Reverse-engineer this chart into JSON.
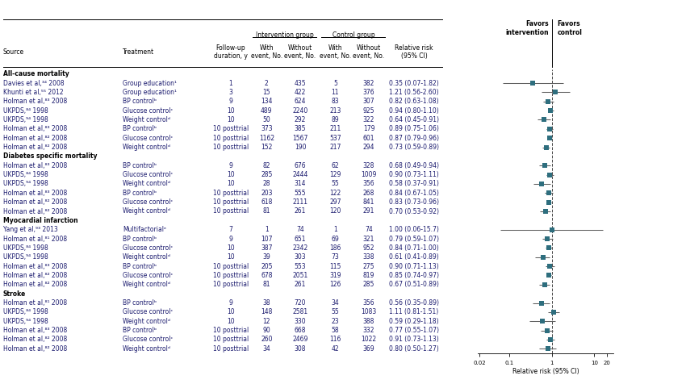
{
  "sections": [
    {
      "label": "All-cause mortality",
      "rows": [
        {
          "source": "Davies et al,³⁴ 2008",
          "treatment": "Group education¹",
          "followup": "1",
          "int_with": "2",
          "int_without": "435",
          "ctrl_with": "5",
          "ctrl_without": "382",
          "rr": 0.35,
          "ci_lo": 0.07,
          "ci_hi": 1.82,
          "rr_text": "0.35 (0.07-1.82)"
        },
        {
          "source": "Khunti et al,⁵⁵ 2012",
          "treatment": "Group education¹",
          "followup": "3",
          "int_with": "15",
          "int_without": "422",
          "ctrl_with": "11",
          "ctrl_without": "376",
          "rr": 1.21,
          "ci_lo": 0.56,
          "ci_hi": 2.6,
          "rr_text": "1.21 (0.56-2.60)"
        },
        {
          "source": "Holman et al,⁸³ 2008",
          "treatment": "BP controlᵇ",
          "followup": "9",
          "int_with": "134",
          "int_without": "624",
          "ctrl_with": "83",
          "ctrl_without": "307",
          "rr": 0.82,
          "ci_lo": 0.63,
          "ci_hi": 1.08,
          "rr_text": "0.82 (0.63-1.08)"
        },
        {
          "source": "UKPDS,⁸⁴ 1998",
          "treatment": "Glucose controlᶜ",
          "followup": "10",
          "int_with": "489",
          "int_without": "2240",
          "ctrl_with": "213",
          "ctrl_without": "925",
          "rr": 0.94,
          "ci_lo": 0.8,
          "ci_hi": 1.1,
          "rr_text": "0.94 (0.80-1.10)"
        },
        {
          "source": "UKPDS,⁹⁴ 1998",
          "treatment": "Weight controlᵈ",
          "followup": "10",
          "int_with": "50",
          "int_without": "292",
          "ctrl_with": "89",
          "ctrl_without": "322",
          "rr": 0.64,
          "ci_lo": 0.45,
          "ci_hi": 0.91,
          "rr_text": "0.64 (0.45-0.91)"
        },
        {
          "source": "Holman et al,⁸³ 2008",
          "treatment": "BP controlᵇ",
          "followup": "10 posttrial",
          "int_with": "373",
          "int_without": "385",
          "ctrl_with": "211",
          "ctrl_without": "179",
          "rr": 0.89,
          "ci_lo": 0.75,
          "ci_hi": 1.06,
          "rr_text": "0.89 (0.75-1.06)"
        },
        {
          "source": "Holman et al,⁸² 2008",
          "treatment": "Glucose controlᶜ",
          "followup": "10 posttrial",
          "int_with": "1162",
          "int_without": "1567",
          "ctrl_with": "537",
          "ctrl_without": "601",
          "rr": 0.87,
          "ci_lo": 0.79,
          "ci_hi": 0.96,
          "rr_text": "0.87 (0.79-0.96)"
        },
        {
          "source": "Holman et al,⁸² 2008",
          "treatment": "Weight controlᵈ",
          "followup": "10 posttrial",
          "int_with": "152",
          "int_without": "190",
          "ctrl_with": "217",
          "ctrl_without": "294",
          "rr": 0.73,
          "ci_lo": 0.59,
          "ci_hi": 0.89,
          "rr_text": "0.73 (0.59-0.89)"
        }
      ]
    },
    {
      "label": "Diabetes specific mortality",
      "rows": [
        {
          "source": "Holman et al,⁸³ 2008",
          "treatment": "BP controlᵇ",
          "followup": "9",
          "int_with": "82",
          "int_without": "676",
          "ctrl_with": "62",
          "ctrl_without": "328",
          "rr": 0.68,
          "ci_lo": 0.49,
          "ci_hi": 0.94,
          "rr_text": "0.68 (0.49-0.94)"
        },
        {
          "source": "UKPDS,⁸⁴ 1998",
          "treatment": "Glucose controlᶜ",
          "followup": "10",
          "int_with": "285",
          "int_without": "2444",
          "ctrl_with": "129",
          "ctrl_without": "1009",
          "rr": 0.9,
          "ci_lo": 0.73,
          "ci_hi": 1.11,
          "rr_text": "0.90 (0.73-1.11)"
        },
        {
          "source": "UKPDS,⁹⁴ 1998",
          "treatment": "Weight controlᵈ",
          "followup": "10",
          "int_with": "28",
          "int_without": "314",
          "ctrl_with": "55",
          "ctrl_without": "356",
          "rr": 0.58,
          "ci_lo": 0.37,
          "ci_hi": 0.91,
          "rr_text": "0.58 (0.37-0.91)"
        },
        {
          "source": "Holman et al,⁸³ 2008",
          "treatment": "BP controlᵇ",
          "followup": "10 posttrial",
          "int_with": "203",
          "int_without": "555",
          "ctrl_with": "122",
          "ctrl_without": "268",
          "rr": 0.84,
          "ci_lo": 0.67,
          "ci_hi": 1.05,
          "rr_text": "0.84 (0.67-1.05)"
        },
        {
          "source": "Holman et al,⁸² 2008",
          "treatment": "Glucose controlᶜ",
          "followup": "10 posttrial",
          "int_with": "618",
          "int_without": "2111",
          "ctrl_with": "297",
          "ctrl_without": "841",
          "rr": 0.83,
          "ci_lo": 0.73,
          "ci_hi": 0.96,
          "rr_text": "0.83 (0.73-0.96)"
        },
        {
          "source": "Holman et al,⁸² 2008",
          "treatment": "Weight controlᵈ",
          "followup": "10 posttrial",
          "int_with": "81",
          "int_without": "261",
          "ctrl_with": "120",
          "ctrl_without": "291",
          "rr": 0.7,
          "ci_lo": 0.53,
          "ci_hi": 0.92,
          "rr_text": "0.70 (0.53-0.92)"
        }
      ]
    },
    {
      "label": "Myocardial infarction",
      "rows": [
        {
          "source": "Yang et al,⁹³ 2013",
          "treatment": "Multifactorialᵉ",
          "followup": "7",
          "int_with": "1",
          "int_without": "74",
          "ctrl_with": "1",
          "ctrl_without": "74",
          "rr": 1.0,
          "ci_lo": 0.06,
          "ci_hi": 15.7,
          "rr_text": "1.00 (0.06-15.7)"
        },
        {
          "source": "Holman et al,⁸¹ 2008",
          "treatment": "BP controlᵇ",
          "followup": "9",
          "int_with": "107",
          "int_without": "651",
          "ctrl_with": "69",
          "ctrl_without": "321",
          "rr": 0.79,
          "ci_lo": 0.59,
          "ci_hi": 1.07,
          "rr_text": "0.79 (0.59-1.07)"
        },
        {
          "source": "UKPDS,⁸⁴ 1998",
          "treatment": "Glucose controlᶜ",
          "followup": "10",
          "int_with": "387",
          "int_without": "2342",
          "ctrl_with": "186",
          "ctrl_without": "952",
          "rr": 0.84,
          "ci_lo": 0.71,
          "ci_hi": 1.0,
          "rr_text": "0.84 (0.71-1.00)"
        },
        {
          "source": "UKPDS,⁹⁴ 1998",
          "treatment": "Weight controlᵈ",
          "followup": "10",
          "int_with": "39",
          "int_without": "303",
          "ctrl_with": "73",
          "ctrl_without": "338",
          "rr": 0.61,
          "ci_lo": 0.41,
          "ci_hi": 0.89,
          "rr_text": "0.61 (0.41-0.89)"
        },
        {
          "source": "Holman et al,⁸³ 2008",
          "treatment": "BP controlᵇ",
          "followup": "10 posttrial",
          "int_with": "205",
          "int_without": "553",
          "ctrl_with": "115",
          "ctrl_without": "275",
          "rr": 0.9,
          "ci_lo": 0.71,
          "ci_hi": 1.13,
          "rr_text": "0.90 (0.71-1.13)"
        },
        {
          "source": "Holman et al,⁸² 2008",
          "treatment": "Glucose controlᶜ",
          "followup": "10 posttrial",
          "int_with": "678",
          "int_without": "2051",
          "ctrl_with": "319",
          "ctrl_without": "819",
          "rr": 0.85,
          "ci_lo": 0.74,
          "ci_hi": 0.97,
          "rr_text": "0.85 (0.74-0.97)"
        },
        {
          "source": "Holman et al,⁸² 2008",
          "treatment": "Weight controlᵈ",
          "followup": "10 posttrial",
          "int_with": "81",
          "int_without": "261",
          "ctrl_with": "126",
          "ctrl_without": "285",
          "rr": 0.67,
          "ci_lo": 0.51,
          "ci_hi": 0.89,
          "rr_text": "0.67 (0.51-0.89)"
        }
      ]
    },
    {
      "label": "Stroke",
      "rows": [
        {
          "source": "Holman et al,⁸¹ 2008",
          "treatment": "BP controlᵇ",
          "followup": "9",
          "int_with": "38",
          "int_without": "720",
          "ctrl_with": "34",
          "ctrl_without": "356",
          "rr": 0.56,
          "ci_lo": 0.35,
          "ci_hi": 0.89,
          "rr_text": "0.56 (0.35-0.89)"
        },
        {
          "source": "UKPDS,⁸⁴ 1998",
          "treatment": "Glucose controlᶜ",
          "followup": "10",
          "int_with": "148",
          "int_without": "2581",
          "ctrl_with": "55",
          "ctrl_without": "1083",
          "rr": 1.11,
          "ci_lo": 0.81,
          "ci_hi": 1.51,
          "rr_text": "1.11 (0.81-1.51)"
        },
        {
          "source": "UKPDS,⁹⁴ 1998",
          "treatment": "Weight controlᵈ",
          "followup": "10",
          "int_with": "12",
          "int_without": "330",
          "ctrl_with": "23",
          "ctrl_without": "388",
          "rr": 0.59,
          "ci_lo": 0.29,
          "ci_hi": 1.18,
          "rr_text": "0.59 (0.29-1.18)"
        },
        {
          "source": "Holman et al,⁸³ 2008",
          "treatment": "BP controlᵇ",
          "followup": "10 posttrial",
          "int_with": "90",
          "int_without": "668",
          "ctrl_with": "58",
          "ctrl_without": "332",
          "rr": 0.77,
          "ci_lo": 0.55,
          "ci_hi": 1.07,
          "rr_text": "0.77 (0.55-1.07)"
        },
        {
          "source": "Holman et al,⁸² 2008",
          "treatment": "Glucose controlᶜ",
          "followup": "10 posttrial",
          "int_with": "260",
          "int_without": "2469",
          "ctrl_with": "116",
          "ctrl_without": "1022",
          "rr": 0.91,
          "ci_lo": 0.73,
          "ci_hi": 1.13,
          "rr_text": "0.91 (0.73-1.13)"
        },
        {
          "source": "Holman et al,⁸² 2008",
          "treatment": "Weight controlᵈ",
          "followup": "10 posttrial",
          "int_with": "34",
          "int_without": "308",
          "ctrl_with": "42",
          "ctrl_without": "369",
          "rr": 0.8,
          "ci_lo": 0.5,
          "ci_hi": 1.27,
          "rr_text": "0.80 (0.50-1.27)"
        }
      ]
    }
  ],
  "plot_color": "#2e6e7e",
  "ci_color": "#606060",
  "text_color": "#1a1a6e",
  "section_label_color": "#000000",
  "axis_label": "Relative risk (95% CI)",
  "x_min": 0.018,
  "x_max": 28.0,
  "x_ticks": [
    0.02,
    0.1,
    1,
    10,
    20
  ],
  "x_tick_labels": [
    "0.02",
    "0.1",
    "1",
    "10",
    "20"
  ]
}
